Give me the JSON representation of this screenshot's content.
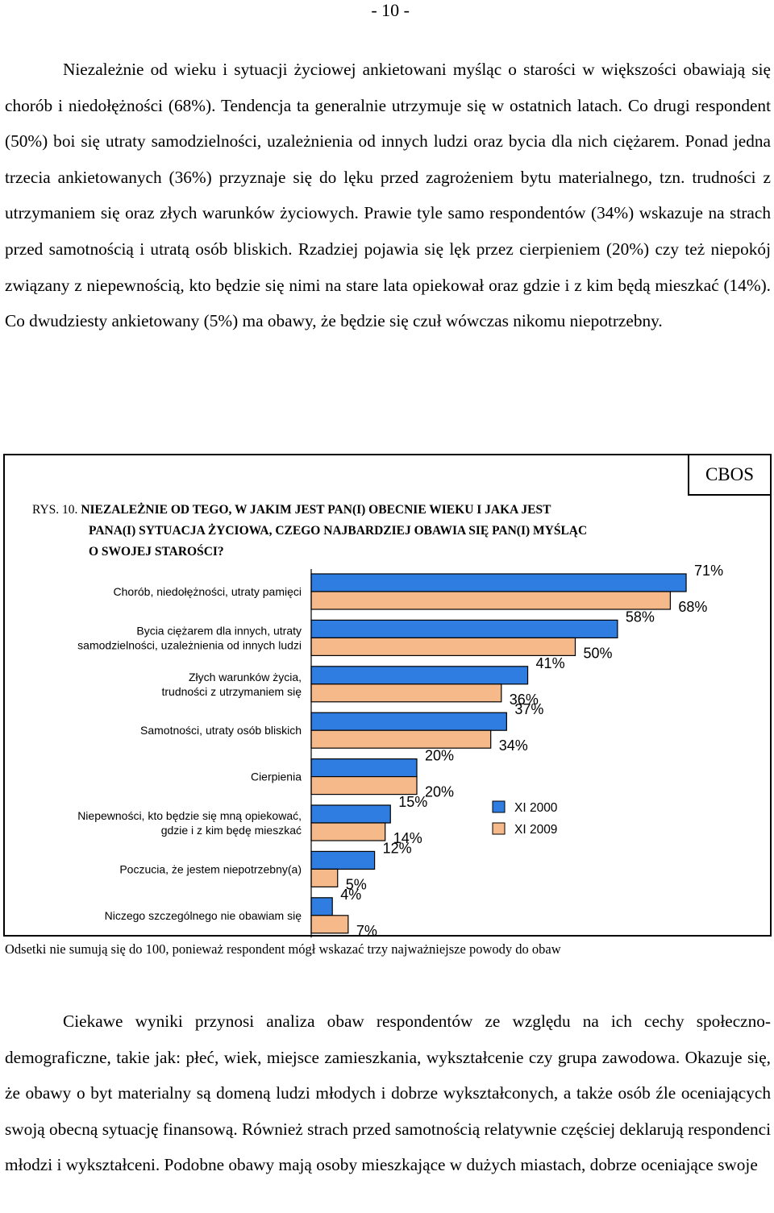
{
  "page_number": "- 10 -",
  "paragraph1": {
    "first_word": "Niezależnie",
    "rest": "od wieku i sytuacji życiowej ankietowani myśląc o starości w większości obawiają się chorób i niedołężności (68%). Tendencja ta generalnie utrzymuje się w ostatnich latach. Co drugi respondent (50%) boi się utraty samodzielności, uzależnienia od innych ludzi oraz bycia dla nich ciężarem. Ponad jedna trzecia ankietowanych (36%) przyznaje się do lęku przed zagrożeniem bytu materialnego, tzn. trudności z utrzymaniem się oraz złych warunków życiowych. Prawie tyle samo respondentów (34%) wskazuje na strach przed samotnością i utratą osób bliskich. Rzadziej pojawia się lęk przez cierpieniem (20%) czy też niepokój związany z niepewnością, kto będzie się nimi na stare lata opiekował oraz gdzie i z kim będą mieszkać (14%). Co dwudziesty ankietowany (5%) ma obawy, że będzie się czuł wówczas nikomu niepotrzebny."
  },
  "figure": {
    "source_badge": "CBOS",
    "number": "RYS. 10.",
    "title_line1": "NIEZALEŻNIE OD TEGO, W JAKIM JEST PAN(I) OBECNIE WIEKU I JAKA JEST",
    "title_line2": "PANA(I) SYTUACJA ŻYCIOWA, CZEGO NAJBARDZIEJ OBAWIA SIĘ PAN(I) MYŚLĄC",
    "title_line3": "O SWOJEJ STAROŚCI?",
    "footnote": "Odsetki nie sumują się do 100, ponieważ respondent mógł wskazać trzy najważniejsze powody do obaw"
  },
  "chart_data": {
    "type": "bar",
    "orientation": "horizontal",
    "categories": [
      [
        "Chorób, niedołężności, utraty pamięci"
      ],
      [
        "Bycia ciężarem dla innych, utraty",
        "samodzielności, uzależnienia od innych ludzi"
      ],
      [
        "Złych warunków życia,",
        "trudności z utrzymaniem się"
      ],
      [
        "Samotności, utraty osób bliskich"
      ],
      [
        "Cierpienia"
      ],
      [
        "Niepewności, kto będzie się mną opiekować,",
        "gdzie i z kim będę mieszkać"
      ],
      [
        "Poczucia, że jestem niepotrzebny(a)"
      ],
      [
        "Niczego szczególnego nie obawiam się"
      ]
    ],
    "series": [
      {
        "name": "XI 2000",
        "color": "#2f7de1",
        "values": [
          71,
          58,
          41,
          37,
          20,
          15,
          12,
          4
        ]
      },
      {
        "name": "XI 2009",
        "color": "#f6b98a",
        "values": [
          68,
          50,
          36,
          34,
          20,
          14,
          5,
          7
        ]
      }
    ],
    "value_suffix": "%",
    "xlim": [
      0,
      100
    ],
    "legend_position": "right"
  },
  "paragraph2": {
    "first_word": "Ciekawe",
    "rest": "wyniki przynosi analiza obaw respondentów ze względu na ich cechy społeczno-demograficzne, takie jak: płeć, wiek, miejsce zamieszkania, wykształcenie czy grupa zawodowa. Okazuje się, że obawy o byt materialny są domeną ludzi młodych i dobrze wykształconych, a także osób źle oceniających swoją obecną sytuację finansową. Również strach przed samotnością relatywnie częściej deklarują respondenci młodzi i wykształceni. Podobne obawy mają osoby mieszkające w dużych miastach, dobrze oceniające swoje"
  }
}
